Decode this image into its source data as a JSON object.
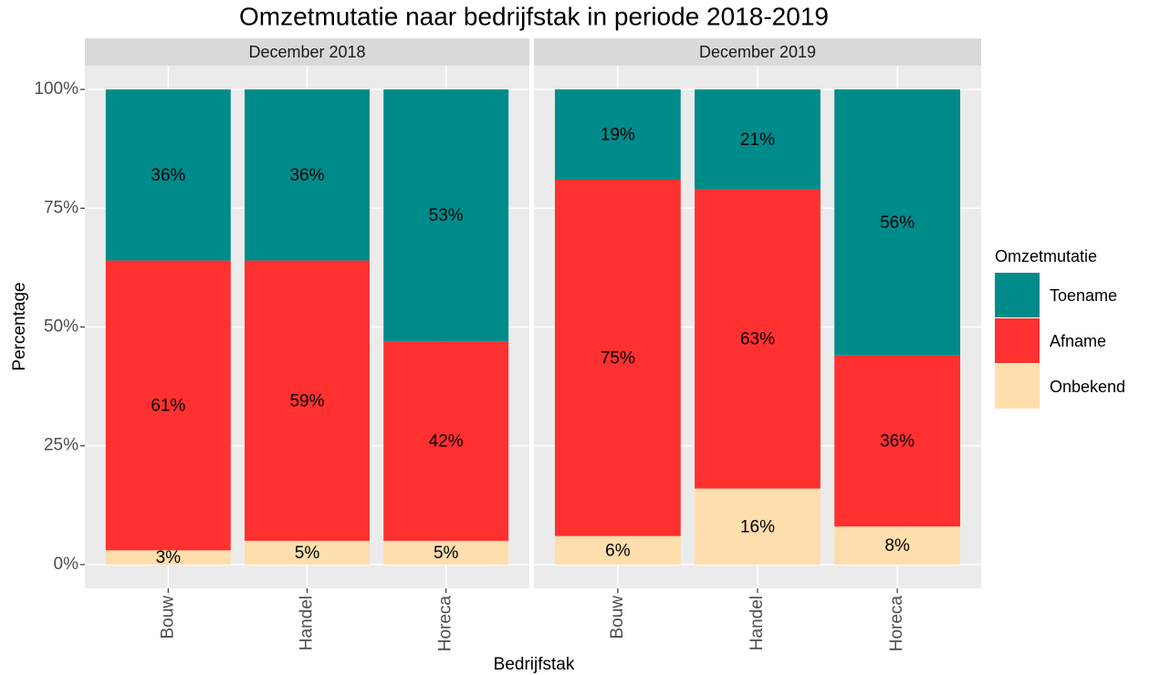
{
  "chart_data": {
    "type": "bar",
    "stacked": true,
    "title": "Omzetmutatie naar bedrijfstak in periode 2018-2019",
    "xlabel": "Bedrijfstak",
    "ylabel": "Percentage",
    "legend_title": "Omzetmutatie",
    "legend": "right",
    "grid": true,
    "ylim": [
      -5,
      105
    ],
    "yticks": [
      {
        "value": 0,
        "label": "0%"
      },
      {
        "value": 25,
        "label": "25%"
      },
      {
        "value": 50,
        "label": "50%"
      },
      {
        "value": 75,
        "label": "75%"
      },
      {
        "value": 100,
        "label": "100%"
      }
    ],
    "categories": [
      "Bouw",
      "Handel",
      "Horeca"
    ],
    "panels": [
      {
        "title": "December 2018",
        "series": [
          {
            "name": "Toename",
            "color": "#008b8b",
            "values": [
              36,
              36,
              53
            ],
            "value_labels": [
              "36%",
              "36%",
              "53%"
            ]
          },
          {
            "name": "Afname",
            "color": "#ff3030",
            "values": [
              61,
              59,
              42
            ],
            "value_labels": [
              "61%",
              "59%",
              "42%"
            ]
          },
          {
            "name": "Onbekend",
            "color": "#ffdead",
            "values": [
              3,
              5,
              5
            ],
            "value_labels": [
              "3%",
              "5%",
              "5%"
            ]
          }
        ]
      },
      {
        "title": "December 2019",
        "series": [
          {
            "name": "Toename",
            "color": "#008b8b",
            "values": [
              19,
              21,
              56
            ],
            "value_labels": [
              "19%",
              "21%",
              "56%"
            ]
          },
          {
            "name": "Afname",
            "color": "#ff3030",
            "values": [
              75,
              63,
              36
            ],
            "value_labels": [
              "75%",
              "63%",
              "36%"
            ]
          },
          {
            "name": "Onbekend",
            "color": "#ffdead",
            "values": [
              6,
              16,
              8
            ],
            "value_labels": [
              "6%",
              "16%",
              "8%"
            ]
          }
        ]
      }
    ]
  }
}
